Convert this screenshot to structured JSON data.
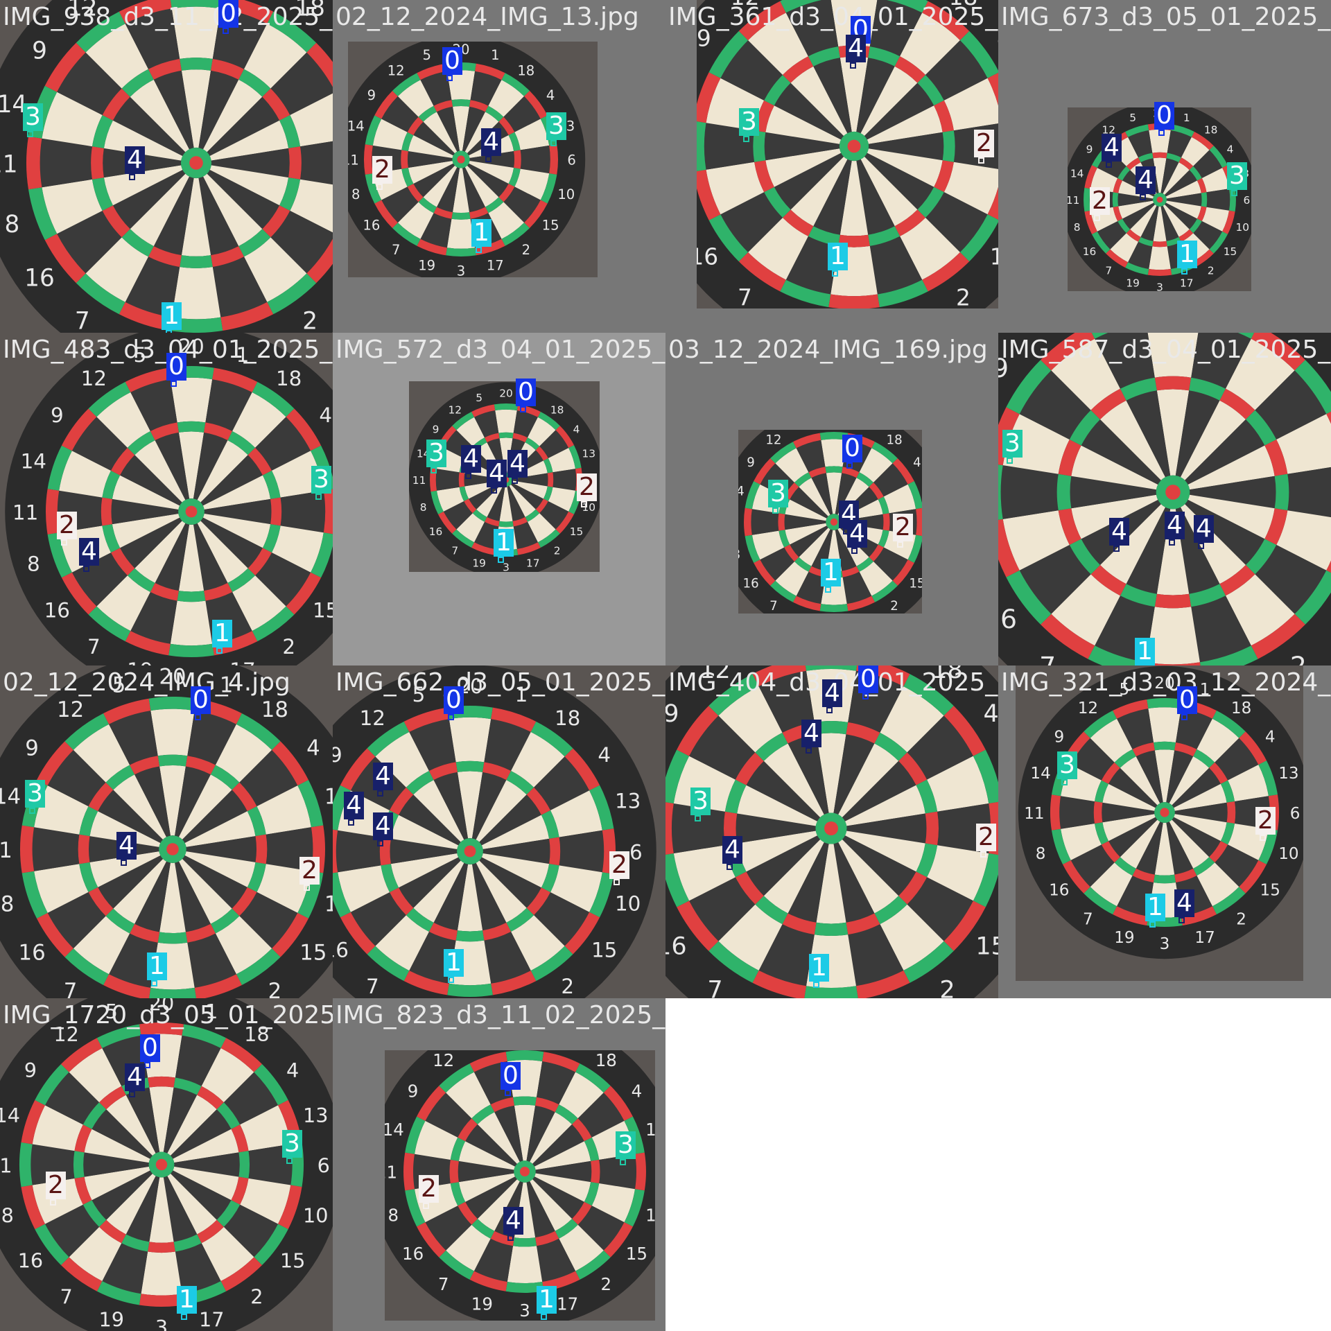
{
  "grid": {
    "columns": 4,
    "rows": 4
  },
  "class_colors": {
    "0": {
      "bg": "#1434e6",
      "fg": "#ffffff"
    },
    "1": {
      "bg": "#1ccbe6",
      "fg": "#ffffff"
    },
    "2": {
      "bg": "#f5f0ee",
      "fg": "#5a1414"
    },
    "3": {
      "bg": "#1fc9a6",
      "fg": "#ffffff"
    },
    "4": {
      "bg": "#17206a",
      "fg": "#ffffff"
    }
  },
  "tiles": [
    {
      "filename": "IMG_938_d3_11_02_2025_close3.jpg",
      "board_style": "green-red",
      "labels": [
        "0",
        "1",
        "3",
        "4"
      ]
    },
    {
      "filename": "02_12_2024_IMG_13.jpg",
      "board_style": "green-red",
      "labels": [
        "0",
        "1",
        "2",
        "3",
        "4"
      ]
    },
    {
      "filename": "IMG_361_d3_04_01_2025_close.jpg",
      "board_style": "red-green",
      "labels": [
        "0",
        "1",
        "2",
        "3",
        "4"
      ]
    },
    {
      "filename": "IMG_673_d3_05_01_2025_blue.jpg",
      "board_style": "red-green",
      "labels": [
        "0",
        "1",
        "2",
        "3",
        "4",
        "4"
      ]
    },
    {
      "filename": "IMG_483_d3_04_01_2025_1.jpg",
      "board_style": "green-red",
      "labels": [
        "0",
        "1",
        "2",
        "3",
        "4"
      ]
    },
    {
      "filename": "IMG_572_d3_04_01_2025_center.jpg",
      "board_style": "green-red",
      "labels": [
        "0",
        "1",
        "2",
        "3",
        "4",
        "4",
        "4"
      ]
    },
    {
      "filename": "03_12_2024_IMG_169.jpg",
      "board_style": "green-red",
      "labels": [
        "0",
        "1",
        "2",
        "3",
        "4",
        "4"
      ]
    },
    {
      "filename": "IMG_587_d3_04_01_2025_1.jpg",
      "board_style": "red-green",
      "labels": [
        "1",
        "3",
        "4",
        "4",
        "4"
      ]
    },
    {
      "filename": "02_12_2024_IMG_4.jpg",
      "board_style": "green-red",
      "labels": [
        "0",
        "1",
        "2",
        "3",
        "4"
      ]
    },
    {
      "filename": "IMG_662_d3_05_01_2025_black.jpg",
      "board_style": "green-red",
      "labels": [
        "0",
        "1",
        "2",
        "4",
        "4",
        "4"
      ]
    },
    {
      "filename": "IMG_404_d3_04_01_2025_2.jpg",
      "board_style": "green-red",
      "labels": [
        "0",
        "1",
        "2",
        "3",
        "4",
        "4",
        "4"
      ]
    },
    {
      "filename": "IMG_321_d3_03_12_2024_hard.jpg",
      "board_style": "green-red",
      "labels": [
        "0",
        "1",
        "2",
        "3",
        "4"
      ]
    },
    {
      "filename": "IMG_1720_d3_05_01_2025_blue.jpg",
      "board_style": "red-green",
      "labels": [
        "0",
        "1",
        "2",
        "3",
        "4"
      ]
    },
    {
      "filename": "IMG_823_d3_11_02_2025_close3.jpg",
      "board_style": "green-red",
      "labels": [
        "0",
        "1",
        "2",
        "3",
        "4"
      ]
    }
  ]
}
